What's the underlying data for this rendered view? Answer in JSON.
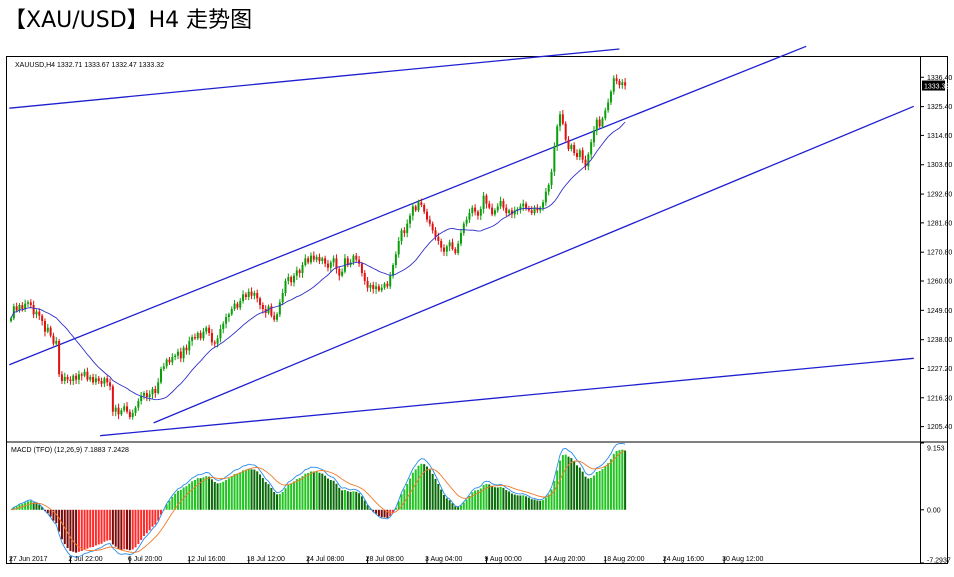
{
  "page": {
    "title": "【XAU/USD】H4 走势图"
  },
  "chart_data": [
    {
      "type": "candlestick",
      "name": "price",
      "header": "XAUUSD,H4  1332.71 1333.67 1332.47 1333.32",
      "ylim": [
        1200.0,
        1344.0
      ],
      "y_ticks": [
        1336.4,
        1325.4,
        1314.6,
        1303.6,
        1292.6,
        1281.8,
        1270.8,
        1260.0,
        1249.0,
        1238.0,
        1227.2,
        1216.2,
        1205.4
      ],
      "last_price_label": "1333.32",
      "x_labels": [
        "27 Jun 2017",
        "2 Jul 22:00",
        "6 Jul 20:00",
        "12 Jul 16:00",
        "18 Jul 12:00",
        "24 Jul 08:00",
        "28 Jul 08:00",
        "3 Aug 04:00",
        "9 Aug 00:00",
        "14 Aug 20:00",
        "18 Aug 20:00",
        "24 Aug 16:00",
        "30 Aug 12:00"
      ],
      "bars_per_label": 21,
      "closes": [
        1246.0,
        1250.5,
        1249.0,
        1251.0,
        1249.5,
        1251.5,
        1252.0,
        1251.0,
        1247.5,
        1248.5,
        1247.0,
        1245.0,
        1241.0,
        1242.5,
        1239.5,
        1236.5,
        1237.5,
        1225.0,
        1222.5,
        1224.0,
        1223.0,
        1222.5,
        1224.5,
        1223.0,
        1225.0,
        1224.5,
        1226.0,
        1223.0,
        1224.0,
        1222.0,
        1223.5,
        1222.5,
        1221.5,
        1223.5,
        1222.0,
        1220.5,
        1211.0,
        1212.5,
        1210.0,
        1211.5,
        1213.0,
        1211.0,
        1209.0,
        1210.5,
        1212.5,
        1215.0,
        1217.0,
        1218.0,
        1216.5,
        1217.5,
        1219.5,
        1218.0,
        1222.0,
        1227.0,
        1228.0,
        1230.5,
        1229.5,
        1231.5,
        1232.0,
        1233.5,
        1231.0,
        1235.0,
        1234.0,
        1237.5,
        1239.0,
        1238.5,
        1240.5,
        1238.5,
        1241.0,
        1242.5,
        1240.5,
        1237.0,
        1236.5,
        1238.5,
        1242.0,
        1244.0,
        1246.5,
        1247.5,
        1249.5,
        1251.5,
        1250.0,
        1252.5,
        1255.0,
        1254.0,
        1256.0,
        1254.5,
        1255.5,
        1253.5,
        1251.0,
        1249.5,
        1248.0,
        1250.5,
        1247.0,
        1245.5,
        1247.5,
        1252.0,
        1255.5,
        1260.0,
        1261.5,
        1259.5,
        1262.0,
        1264.0,
        1263.0,
        1266.0,
        1268.5,
        1267.0,
        1269.5,
        1268.0,
        1269.0,
        1267.5,
        1268.5,
        1266.5,
        1265.0,
        1267.0,
        1268.5,
        1264.5,
        1262.0,
        1263.5,
        1268.5,
        1266.0,
        1267.0,
        1269.5,
        1268.0,
        1266.5,
        1263.0,
        1260.0,
        1257.5,
        1258.5,
        1257.0,
        1258.0,
        1256.5,
        1257.5,
        1259.0,
        1258.0,
        1262.0,
        1266.0,
        1270.0,
        1275.0,
        1279.0,
        1278.0,
        1281.5,
        1284.5,
        1288.0,
        1286.5,
        1289.5,
        1288.5,
        1286.0,
        1283.0,
        1281.5,
        1279.0,
        1276.5,
        1275.0,
        1272.5,
        1271.0,
        1273.0,
        1274.5,
        1272.0,
        1270.5,
        1274.0,
        1278.0,
        1281.5,
        1283.0,
        1285.5,
        1287.5,
        1286.0,
        1284.5,
        1287.0,
        1292.0,
        1289.0,
        1287.5,
        1285.0,
        1286.5,
        1288.0,
        1290.0,
        1287.5,
        1285.5,
        1286.5,
        1285.0,
        1286.5,
        1287.0,
        1288.0,
        1289.0,
        1287.0,
        1286.5,
        1285.5,
        1287.5,
        1286.5,
        1287.5,
        1289.5,
        1293.5,
        1296.0,
        1301.0,
        1310.5,
        1318.0,
        1322.5,
        1319.0,
        1313.0,
        1309.5,
        1311.0,
        1308.0,
        1306.5,
        1309.0,
        1305.5,
        1303.0,
        1307.5,
        1312.0,
        1316.5,
        1320.5,
        1318.0,
        1321.0,
        1324.0,
        1327.0,
        1331.0,
        1336.0,
        1335.0,
        1333.5,
        1334.5,
        1333.3
      ],
      "ma_period": 20,
      "trendlines": [
        {
          "name": "outer-upper",
          "points": [
            [
              -0.6,
              1324.8
            ],
            [
              215.0,
              1347.0
            ]
          ]
        },
        {
          "name": "channel-upper",
          "points": [
            [
              -0.6,
              1228.6
            ],
            [
              281.0,
              1348.0
            ]
          ]
        },
        {
          "name": "channel-lower",
          "points": [
            [
              50.4,
              1206.8
            ],
            [
              319.0,
              1325.5
            ]
          ]
        },
        {
          "name": "outer-lower",
          "points": [
            [
              31.5,
              1202.0
            ],
            [
              319.0,
              1231.0
            ]
          ]
        }
      ]
    },
    {
      "type": "macd",
      "header": "MACD (TFO) (12,26,9) 7.1883 7.2428",
      "params": [
        12,
        26,
        9
      ],
      "ylim": [
        -7.2937,
        9.153
      ],
      "y_ticks": [
        "9.153",
        "0.00",
        "-7.2937"
      ]
    }
  ]
}
